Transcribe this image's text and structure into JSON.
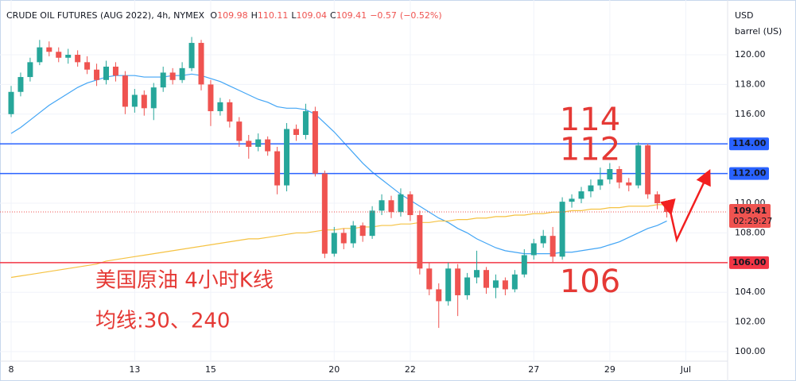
{
  "chart_data": {
    "type": "candlestick",
    "title": "CRUDE OIL FUTURES (AUG 2022), 4h, NYMEX",
    "ohlc_legend": [
      {
        "label": "O",
        "value": 109.98
      },
      {
        "label": "H",
        "value": 110.11
      },
      {
        "label": "L",
        "value": 109.04
      },
      {
        "label": "C",
        "value": 109.41
      }
    ],
    "change": {
      "value": -0.57,
      "label": "−0.57"
    },
    "change_pct": {
      "value": -0.52,
      "label": "(−0.52%)"
    },
    "y_unit": [
      "USD",
      "barrel (US)"
    ],
    "caption": "美国原油 4小时K线",
    "ma_caption": "均线:30、240",
    "categories": [
      "8",
      null,
      null,
      null,
      null,
      null,
      null,
      null,
      null,
      null,
      null,
      null,
      null,
      "13",
      null,
      null,
      null,
      null,
      null,
      null,
      null,
      "15",
      null,
      null,
      null,
      null,
      null,
      null,
      null,
      null,
      null,
      null,
      null,
      null,
      "20",
      null,
      null,
      null,
      null,
      null,
      null,
      null,
      "22",
      null,
      null,
      null,
      null,
      null,
      null,
      null,
      null,
      null,
      null,
      null,
      null,
      "27",
      null,
      null,
      null,
      null,
      null,
      null,
      null,
      "29",
      null,
      null,
      null,
      null,
      null,
      null,
      null,
      "Jul"
    ],
    "open": [
      116,
      117.5,
      118.5,
      119.5,
      120.5,
      120.2,
      119.8,
      120.0,
      119.5,
      119.0,
      118.3,
      119.2,
      118.6,
      116.5,
      117.3,
      116.4,
      117.8,
      118.8,
      118.3,
      119.1,
      120.8,
      118.0,
      116.2,
      116.8,
      115.5,
      114.2,
      113.8,
      114.3,
      113.5,
      111.2,
      115.0,
      114.6,
      116.2,
      112.0,
      106.6,
      108.0,
      107.3,
      108.5,
      107.8,
      109.5,
      110.2,
      109.4,
      110.6,
      109.2,
      105.6,
      104.2,
      103.4,
      105.6,
      103.8,
      105.0,
      105.5,
      104.3,
      104.8,
      104.2,
      105.2,
      106.5,
      107.3,
      107.8,
      106.4,
      110.1,
      110.3,
      110.8,
      111.2,
      111.6,
      112.3,
      111.4,
      111.2,
      113.9,
      110.6,
      109.98,
      null,
      null
    ],
    "high": [
      117.9,
      118.8,
      119.8,
      121.0,
      120.9,
      120.5,
      120.4,
      120.3,
      119.9,
      119.4,
      119.6,
      119.5,
      118.9,
      117.7,
      117.6,
      118.1,
      119.2,
      119.1,
      119.5,
      121.2,
      121.0,
      118.3,
      117.1,
      117.0,
      115.8,
      114.6,
      114.7,
      114.5,
      113.8,
      115.4,
      115.3,
      116.7,
      116.5,
      112.2,
      108.4,
      108.3,
      108.8,
      108.7,
      109.8,
      110.6,
      110.5,
      111.0,
      110.8,
      109.5,
      106.0,
      104.6,
      106.0,
      105.9,
      105.3,
      106.8,
      105.7,
      105.2,
      105.0,
      105.5,
      106.9,
      107.6,
      108.2,
      108.4,
      110.4,
      110.6,
      111.1,
      111.6,
      112.4,
      112.7,
      112.5,
      111.7,
      114.1,
      114.0,
      110.8,
      110.11,
      null,
      null
    ],
    "low": [
      115.8,
      117.2,
      118.2,
      119.3,
      119.9,
      119.5,
      119.4,
      119.2,
      118.7,
      117.9,
      118.0,
      118.2,
      116.0,
      116.1,
      115.9,
      115.6,
      117.5,
      118.0,
      118.1,
      118.9,
      117.6,
      115.2,
      115.9,
      115.1,
      113.8,
      113.0,
      113.5,
      113.2,
      110.6,
      110.8,
      114.2,
      114.3,
      111.8,
      106.3,
      106.4,
      106.9,
      107.0,
      107.4,
      107.6,
      109.2,
      109.0,
      109.1,
      108.8,
      105.2,
      103.8,
      101.6,
      103.1,
      102.4,
      103.5,
      104.6,
      103.9,
      103.6,
      103.8,
      104.0,
      105.0,
      106.2,
      107.0,
      106.0,
      106.2,
      109.7,
      110.0,
      110.4,
      110.9,
      111.3,
      111.0,
      110.8,
      111.0,
      110.3,
      109.6,
      109.04,
      null,
      null
    ],
    "close": [
      117.5,
      118.5,
      119.5,
      120.5,
      120.2,
      119.8,
      120.0,
      119.5,
      119.0,
      118.3,
      119.2,
      118.6,
      116.5,
      117.3,
      116.4,
      117.8,
      118.8,
      118.3,
      119.1,
      120.8,
      118.0,
      116.2,
      116.8,
      115.5,
      114.2,
      113.8,
      114.3,
      113.5,
      111.2,
      115.0,
      114.6,
      116.2,
      112.0,
      106.6,
      108.0,
      107.3,
      108.5,
      107.8,
      109.5,
      110.2,
      109.4,
      110.6,
      109.2,
      105.6,
      104.2,
      103.4,
      105.6,
      103.8,
      105.0,
      105.5,
      104.3,
      104.8,
      104.2,
      105.2,
      106.5,
      107.3,
      107.8,
      106.4,
      110.1,
      110.3,
      110.8,
      111.2,
      111.6,
      112.3,
      111.4,
      111.2,
      113.9,
      110.6,
      110.0,
      109.41,
      null,
      null
    ],
    "up_color": "#26a69a",
    "down_color": "#ef5350",
    "moving_averages": [
      {
        "color": "#42a5f5",
        "values": [
          114.7,
          115.1,
          115.6,
          116.1,
          116.6,
          117.0,
          117.4,
          117.8,
          118.1,
          118.3,
          118.5,
          118.6,
          118.6,
          118.6,
          118.5,
          118.5,
          118.5,
          118.6,
          118.6,
          118.7,
          118.6,
          118.4,
          118.2,
          117.9,
          117.6,
          117.3,
          117.0,
          116.8,
          116.5,
          116.4,
          116.4,
          116.3,
          116.0,
          115.4,
          114.8,
          114.1,
          113.4,
          112.7,
          112.1,
          111.6,
          111.1,
          110.6,
          110.2,
          109.8,
          109.4,
          109.0,
          108.7,
          108.3,
          108.0,
          107.6,
          107.3,
          107.0,
          106.8,
          106.7,
          106.6,
          106.6,
          106.6,
          106.6,
          106.7,
          106.7,
          106.8,
          106.9,
          107.0,
          107.2,
          107.4,
          107.7,
          108.0,
          108.3,
          108.5,
          108.8,
          null,
          null
        ]
      },
      {
        "color": "#f5c242",
        "values": [
          105.0,
          105.1,
          105.2,
          105.3,
          105.4,
          105.5,
          105.6,
          105.7,
          105.8,
          105.9,
          106.1,
          106.2,
          106.3,
          106.4,
          106.5,
          106.6,
          106.7,
          106.8,
          106.9,
          107.0,
          107.1,
          107.2,
          107.3,
          107.4,
          107.5,
          107.6,
          107.6,
          107.7,
          107.8,
          107.9,
          108.0,
          108.0,
          108.1,
          108.2,
          108.2,
          108.3,
          108.3,
          108.4,
          108.4,
          108.5,
          108.5,
          108.6,
          108.6,
          108.7,
          108.7,
          108.8,
          108.8,
          108.9,
          108.9,
          109.0,
          109.0,
          109.1,
          109.1,
          109.2,
          109.2,
          109.3,
          109.3,
          109.4,
          109.4,
          109.5,
          109.5,
          109.6,
          109.6,
          109.7,
          109.7,
          109.8,
          109.8,
          109.8,
          109.9,
          109.9,
          null,
          null
        ]
      }
    ],
    "levels": [
      {
        "value": 114,
        "label": "114.00",
        "color": "#2962ff",
        "annotation": "114"
      },
      {
        "value": 112,
        "label": "112.00",
        "color": "#2962ff",
        "annotation": "112"
      },
      {
        "value": 106,
        "label": "106.00",
        "color": "#f23645",
        "annotation": "106"
      }
    ],
    "last_price": {
      "value": 109.41,
      "countdown": "02:29:27",
      "color": "#ef5350"
    },
    "ylim": [
      99.36,
      123.69
    ],
    "yticks": [
      {
        "value": 100,
        "label": "100.00"
      },
      {
        "value": 102,
        "label": "102.00"
      },
      {
        "value": 104,
        "label": "104.00"
      },
      {
        "value": 106,
        "label": "106.00"
      },
      {
        "value": 108,
        "label": "108.00"
      },
      {
        "value": 110,
        "label": "110.00"
      },
      {
        "value": 112,
        "label": "112.00"
      },
      {
        "value": 114,
        "label": "114.00"
      },
      {
        "value": 116,
        "label": "116.00"
      },
      {
        "value": 118,
        "label": "118.00"
      },
      {
        "value": 120,
        "label": "120.00"
      }
    ]
  }
}
